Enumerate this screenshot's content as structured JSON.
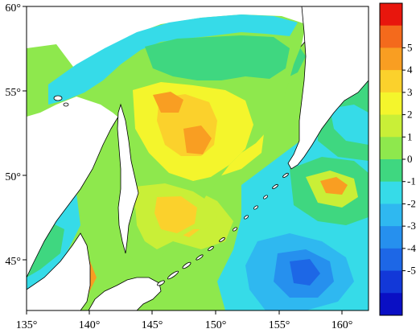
{
  "map": {
    "lon_ticks": [
      "135°",
      "140°",
      "145°",
      "150°",
      "155°",
      "160°"
    ],
    "lat_ticks": [
      "60°",
      "55°",
      "50°",
      "45°"
    ]
  },
  "colorbar": {
    "labels": [
      "5",
      "4",
      "3",
      "2",
      "1",
      "0",
      "-1",
      "-2",
      "-3",
      "-4",
      "-5"
    ],
    "colors": [
      "#e8160d",
      "#f46a1c",
      "#f99e22",
      "#fbd12c",
      "#f4f52c",
      "#c9ef37",
      "#8ee84d",
      "#3fd780",
      "#36dbe8",
      "#2fb8f0",
      "#2690ee",
      "#1d67e6",
      "#1238d8",
      "#0a0fc4"
    ]
  },
  "palette": {
    "land": "#ffffff",
    "coast": "#000000",
    "teal": "#36dbe8",
    "green": "#3fd780",
    "lightgreen": "#8ee84d",
    "yellowgreen": "#c9ef37",
    "yellow": "#f4f52c",
    "orange": "#fbd12c",
    "darkorange": "#f99e22",
    "sky": "#2fb8f0",
    "blue": "#2690ee",
    "deepblue": "#1d67e6",
    "red": "#e8160d"
  }
}
